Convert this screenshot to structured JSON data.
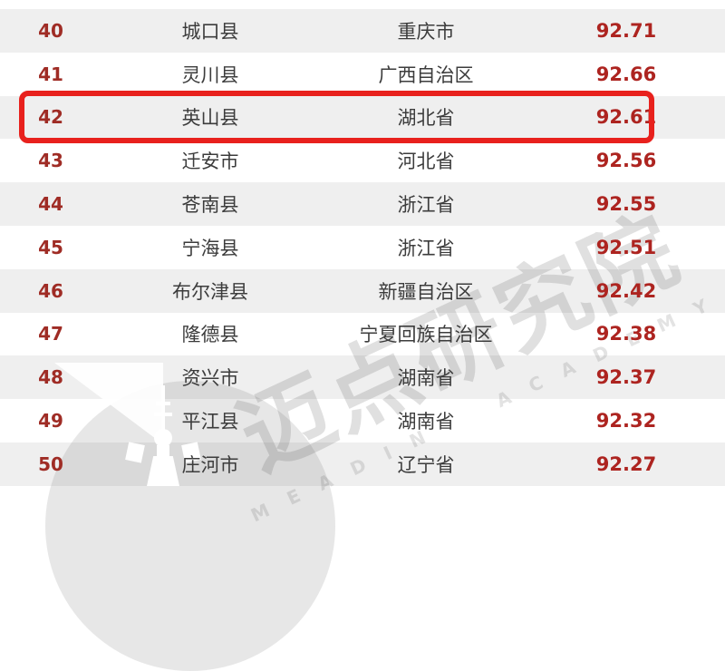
{
  "table": {
    "columns": [
      "rank",
      "county",
      "province",
      "score"
    ],
    "rows": [
      {
        "rank": "40",
        "county": "城口县",
        "province": "重庆市",
        "score": "92.71",
        "highlighted": false
      },
      {
        "rank": "41",
        "county": "灵川县",
        "province": "广西自治区",
        "score": "92.66",
        "highlighted": false
      },
      {
        "rank": "42",
        "county": "英山县",
        "province": "湖北省",
        "score": "92.61",
        "highlighted": true
      },
      {
        "rank": "43",
        "county": "迁安市",
        "province": "河北省",
        "score": "92.56",
        "highlighted": false
      },
      {
        "rank": "44",
        "county": "苍南县",
        "province": "浙江省",
        "score": "92.55",
        "highlighted": false
      },
      {
        "rank": "45",
        "county": "宁海县",
        "province": "浙江省",
        "score": "92.51",
        "highlighted": false
      },
      {
        "rank": "46",
        "county": "布尔津县",
        "province": "新疆自治区",
        "score": "92.42",
        "highlighted": false
      },
      {
        "rank": "47",
        "county": "隆德县",
        "province": "宁夏回族自治区",
        "score": "92.38",
        "highlighted": false
      },
      {
        "rank": "48",
        "county": "资兴市",
        "province": "湖南省",
        "score": "92.37",
        "highlighted": false
      },
      {
        "rank": "49",
        "county": "平江县",
        "province": "湖南省",
        "score": "92.32",
        "highlighted": false
      },
      {
        "rank": "50",
        "county": "庄河市",
        "province": "辽宁省",
        "score": "92.27",
        "highlighted": false
      }
    ]
  },
  "watermark": {
    "cn": "迈点研究院",
    "en": "MEADIN ACADEMY"
  },
  "colors": {
    "rank_red": "#9f2c25",
    "score_red": "#ad2420",
    "highlight_red": "#e8211d",
    "row_gray": "#efefef",
    "name_text": "#3c3c3c",
    "watermark_gray": "#d8d8d8"
  }
}
